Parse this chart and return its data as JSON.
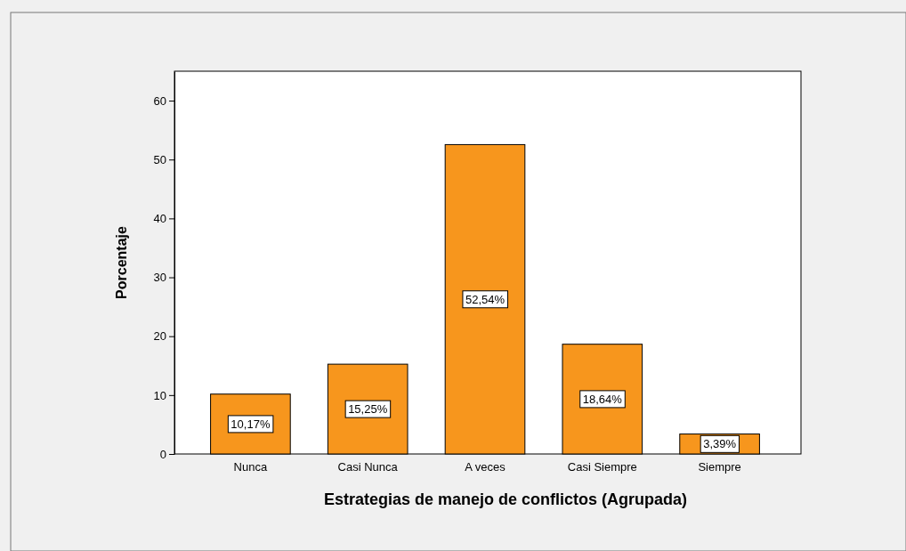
{
  "chart_data": {
    "type": "bar",
    "xlabel": "Estrategias de manejo de conflictos  (Agrupada)",
    "ylabel": "Porcentaje",
    "categories": [
      "Nunca",
      "Casi Nunca",
      "A veces",
      "Casi Siempre",
      "Siempre"
    ],
    "values": [
      10.17,
      15.25,
      52.54,
      18.64,
      3.39
    ],
    "value_labels": [
      "10,17%",
      "15,25%",
      "52,54%",
      "18,64%",
      "3,39%"
    ],
    "color": "#f7961d",
    "ylim": [
      0,
      65
    ],
    "yticks": [
      0,
      10,
      20,
      30,
      40,
      50,
      60
    ],
    "grid": false
  }
}
